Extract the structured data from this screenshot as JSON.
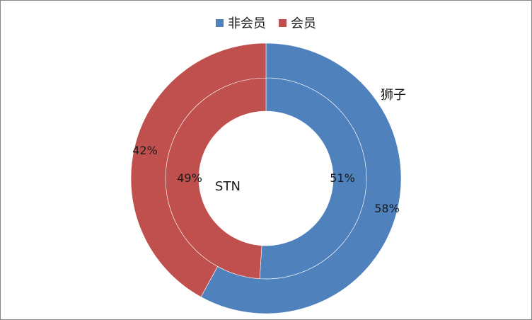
{
  "chart_data": {
    "type": "pie",
    "subtype": "doughnut",
    "legend_position": "top",
    "legend": [
      {
        "name": "非会员",
        "color": "#4F81BD"
      },
      {
        "name": "会员",
        "color": "#C0504D"
      }
    ],
    "rings": [
      {
        "name": "STN",
        "position": "inner",
        "slices": [
          {
            "name": "非会员",
            "value": 51,
            "label": "51%"
          },
          {
            "name": "会员",
            "value": 49,
            "label": "49%"
          }
        ]
      },
      {
        "name": "狮子",
        "position": "outer",
        "slices": [
          {
            "name": "非会员",
            "value": 58,
            "label": "58%"
          },
          {
            "name": "会员",
            "value": 42,
            "label": "42%"
          }
        ]
      }
    ]
  }
}
